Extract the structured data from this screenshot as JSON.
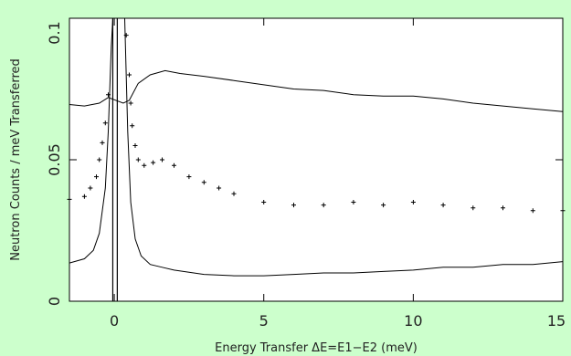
{
  "colors": {
    "background": "#ccffcc",
    "plot_background": "#ffffff",
    "ink": "#000000"
  },
  "chart_data": {
    "type": "line",
    "title": "",
    "xlabel": "Energy Transfer ΔE=E1−E2 (meV)",
    "ylabel": "Neutron Counts / meV Transferred",
    "xlim": [
      -1.5,
      15
    ],
    "ylim": [
      0,
      0.1
    ],
    "x_ticks": [
      0,
      5,
      10,
      15
    ],
    "x_tick_labels": [
      "0",
      "5",
      "10",
      "15"
    ],
    "y_ticks": [
      0,
      0.05,
      0.1
    ],
    "y_tick_labels": [
      "0",
      "0.05",
      "0.1"
    ],
    "grid": false,
    "legend": "none",
    "series": [
      {
        "style": "line",
        "x": [
          -1.5,
          -1.0,
          -0.5,
          -0.2,
          0.3,
          0.5,
          0.8,
          1.2,
          1.7,
          2.2,
          3.0,
          4.0,
          5.0,
          6.0,
          7.0,
          8.0,
          9.0,
          10.0,
          11.0,
          12.0,
          13.0,
          14.0,
          15.0
        ],
        "y": [
          0.0695,
          0.069,
          0.07,
          0.072,
          0.07,
          0.071,
          0.077,
          0.08,
          0.0815,
          0.0805,
          0.0795,
          0.078,
          0.0765,
          0.075,
          0.0745,
          0.073,
          0.0725,
          0.0725,
          0.0715,
          0.07,
          0.069,
          0.068,
          0.067
        ]
      },
      {
        "style": "markers",
        "marker": "+",
        "x": [
          -1.5,
          -1.0,
          -0.8,
          -0.6,
          -0.5,
          -0.4,
          -0.3,
          -0.2,
          0.4,
          0.5,
          0.55,
          0.6,
          0.7,
          0.8,
          1.0,
          1.3,
          1.6,
          2.0,
          2.5,
          3.0,
          3.5,
          4.0,
          5.0,
          6.0,
          7.0,
          8.0,
          9.0,
          10.0,
          11.0,
          12.0,
          13.0,
          14.0,
          15.0
        ],
        "y": [
          0.036,
          0.037,
          0.04,
          0.044,
          0.05,
          0.056,
          0.063,
          0.073,
          0.094,
          0.08,
          0.07,
          0.062,
          0.055,
          0.05,
          0.048,
          0.049,
          0.05,
          0.048,
          0.044,
          0.042,
          0.04,
          0.038,
          0.035,
          0.034,
          0.034,
          0.035,
          0.034,
          0.035,
          0.034,
          0.033,
          0.033,
          0.032,
          0.032
        ]
      },
      {
        "style": "line",
        "x": [
          -1.5,
          -1.0,
          -0.7,
          -0.5,
          -0.3,
          -0.2,
          -0.1,
          -0.05,
          0.35,
          0.45,
          0.55,
          0.7,
          0.9,
          1.2,
          1.6,
          2.0,
          3.0,
          4.0,
          5.0,
          6.0,
          7.0,
          8.0,
          9.0,
          10.0,
          11.0,
          12.0,
          13.0,
          14.0,
          15.0
        ],
        "y": [
          0.0135,
          0.015,
          0.018,
          0.024,
          0.04,
          0.06,
          0.09,
          0.1,
          0.1,
          0.06,
          0.035,
          0.022,
          0.016,
          0.013,
          0.012,
          0.011,
          0.0095,
          0.009,
          0.009,
          0.0095,
          0.01,
          0.01,
          0.0105,
          0.011,
          0.012,
          0.012,
          0.013,
          0.013,
          0.014
        ]
      }
    ],
    "vertical_lines": [
      -0.05,
      0.1
    ]
  }
}
